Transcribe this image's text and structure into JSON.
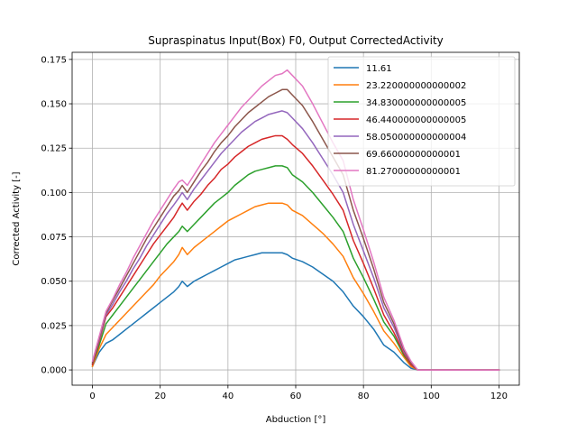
{
  "chart_data": {
    "type": "line",
    "title": "Supraspinatus Input(Box) F0, Output CorrectedActivity",
    "xlabel": "Abduction [°]",
    "ylabel": "Corrected Activity [-]",
    "xlim": [
      -6,
      126
    ],
    "ylim": [
      -0.0086,
      0.179
    ],
    "xticks": [
      0,
      20,
      40,
      60,
      80,
      100,
      120
    ],
    "xtick_labels": [
      "0",
      "20",
      "40",
      "60",
      "80",
      "100",
      "120"
    ],
    "yticks": [
      0,
      0.025,
      0.05,
      0.075,
      0.1,
      0.125,
      0.15,
      0.175
    ],
    "ytick_labels": [
      "0.000",
      "0.025",
      "0.050",
      "0.075",
      "0.100",
      "0.125",
      "0.150",
      "0.175"
    ],
    "grid": true,
    "legend_position": "upper right",
    "x": [
      0,
      2,
      4,
      6,
      8,
      10,
      12,
      14,
      16,
      18,
      20,
      22,
      24,
      25.5,
      26.5,
      28,
      30,
      32,
      34,
      36,
      38,
      40,
      42,
      44,
      46,
      48,
      50,
      52,
      54,
      56,
      57.5,
      59,
      62,
      65,
      68,
      71,
      74,
      77,
      80,
      83,
      86,
      89,
      92,
      94,
      96,
      98,
      100,
      105,
      110,
      115,
      120
    ],
    "series": [
      {
        "name": "11.61",
        "color": "#1f77b4",
        "values": [
          0.002,
          0.01,
          0.015,
          0.017,
          0.02,
          0.023,
          0.026,
          0.029,
          0.032,
          0.035,
          0.038,
          0.041,
          0.044,
          0.047,
          0.05,
          0.047,
          0.05,
          0.052,
          0.054,
          0.056,
          0.058,
          0.06,
          0.062,
          0.063,
          0.064,
          0.065,
          0.066,
          0.066,
          0.066,
          0.066,
          0.065,
          0.063,
          0.061,
          0.058,
          0.054,
          0.05,
          0.044,
          0.036,
          0.03,
          0.023,
          0.014,
          0.01,
          0.004,
          0.001,
          0.0,
          0.0,
          0.0,
          0.0,
          0.0,
          0.0,
          0.0
        ]
      },
      {
        "name": "23.220000000000002",
        "color": "#ff7f0e",
        "values": [
          0.002,
          0.012,
          0.02,
          0.024,
          0.028,
          0.032,
          0.036,
          0.04,
          0.044,
          0.048,
          0.053,
          0.057,
          0.061,
          0.065,
          0.069,
          0.065,
          0.069,
          0.072,
          0.075,
          0.078,
          0.081,
          0.084,
          0.086,
          0.088,
          0.09,
          0.092,
          0.093,
          0.094,
          0.094,
          0.094,
          0.093,
          0.09,
          0.087,
          0.082,
          0.077,
          0.071,
          0.064,
          0.052,
          0.043,
          0.033,
          0.022,
          0.015,
          0.007,
          0.002,
          0.0,
          0.0,
          0.0,
          0.0,
          0.0,
          0.0,
          0.0
        ]
      },
      {
        "name": "34.830000000000005",
        "color": "#2ca02c",
        "values": [
          0.003,
          0.014,
          0.026,
          0.031,
          0.036,
          0.041,
          0.046,
          0.051,
          0.056,
          0.061,
          0.066,
          0.071,
          0.075,
          0.078,
          0.081,
          0.078,
          0.082,
          0.086,
          0.09,
          0.094,
          0.097,
          0.1,
          0.104,
          0.107,
          0.11,
          0.112,
          0.113,
          0.114,
          0.115,
          0.115,
          0.114,
          0.11,
          0.106,
          0.1,
          0.093,
          0.086,
          0.078,
          0.063,
          0.052,
          0.04,
          0.027,
          0.019,
          0.008,
          0.003,
          0.0,
          0.0,
          0.0,
          0.0,
          0.0,
          0.0,
          0.0
        ]
      },
      {
        "name": "46.440000000000005",
        "color": "#d62728",
        "values": [
          0.003,
          0.016,
          0.03,
          0.035,
          0.041,
          0.047,
          0.053,
          0.059,
          0.065,
          0.071,
          0.076,
          0.081,
          0.086,
          0.091,
          0.094,
          0.09,
          0.095,
          0.099,
          0.104,
          0.108,
          0.113,
          0.116,
          0.12,
          0.123,
          0.126,
          0.128,
          0.13,
          0.131,
          0.132,
          0.132,
          0.13,
          0.127,
          0.122,
          0.115,
          0.107,
          0.099,
          0.09,
          0.073,
          0.06,
          0.046,
          0.031,
          0.021,
          0.009,
          0.003,
          0.0,
          0.0,
          0.0,
          0.0,
          0.0,
          0.0,
          0.0
        ]
      },
      {
        "name": "58.050000000000004",
        "color": "#9467bd",
        "values": [
          0.004,
          0.017,
          0.031,
          0.037,
          0.044,
          0.05,
          0.057,
          0.063,
          0.07,
          0.076,
          0.082,
          0.088,
          0.093,
          0.097,
          0.1,
          0.096,
          0.102,
          0.107,
          0.112,
          0.117,
          0.122,
          0.126,
          0.13,
          0.134,
          0.137,
          0.14,
          0.142,
          0.144,
          0.145,
          0.146,
          0.145,
          0.142,
          0.136,
          0.128,
          0.119,
          0.11,
          0.1,
          0.082,
          0.067,
          0.052,
          0.035,
          0.024,
          0.01,
          0.004,
          0.0,
          0.0,
          0.0,
          0.0,
          0.0,
          0.0,
          0.0
        ]
      },
      {
        "name": "69.66000000000001",
        "color": "#8c564b",
        "values": [
          0.004,
          0.018,
          0.032,
          0.039,
          0.046,
          0.053,
          0.06,
          0.067,
          0.074,
          0.08,
          0.086,
          0.092,
          0.098,
          0.101,
          0.104,
          0.1,
          0.106,
          0.112,
          0.117,
          0.123,
          0.128,
          0.132,
          0.137,
          0.141,
          0.145,
          0.148,
          0.151,
          0.154,
          0.156,
          0.158,
          0.158,
          0.155,
          0.149,
          0.14,
          0.13,
          0.12,
          0.11,
          0.09,
          0.074,
          0.057,
          0.038,
          0.026,
          0.011,
          0.004,
          0.0,
          0.0,
          0.0,
          0.0,
          0.0,
          0.0,
          0.0
        ]
      },
      {
        "name": "81.27000000000001",
        "color": "#e377c2",
        "values": [
          0.005,
          0.019,
          0.033,
          0.04,
          0.048,
          0.055,
          0.063,
          0.07,
          0.077,
          0.084,
          0.09,
          0.096,
          0.102,
          0.106,
          0.107,
          0.104,
          0.11,
          0.116,
          0.122,
          0.128,
          0.133,
          0.138,
          0.143,
          0.148,
          0.152,
          0.156,
          0.16,
          0.163,
          0.166,
          0.167,
          0.169,
          0.166,
          0.16,
          0.15,
          0.139,
          0.128,
          0.118,
          0.096,
          0.079,
          0.061,
          0.041,
          0.028,
          0.012,
          0.005,
          0.0,
          0.0,
          0.0,
          0.0,
          0.0,
          0.0,
          0.0
        ]
      }
    ]
  }
}
